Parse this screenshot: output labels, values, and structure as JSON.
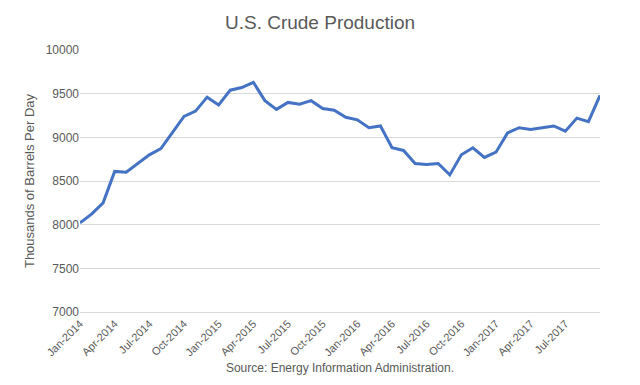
{
  "chart_data": {
    "type": "line",
    "title": "U.S. Crude Production",
    "y_label": "Thousands of Barrels Per Day",
    "x_label": "Source: Energy Information Administration.",
    "categories": [
      "Jan-2014",
      null,
      null,
      "Apr-2014",
      null,
      null,
      "Jul-2014",
      null,
      null,
      "Oct-2014",
      null,
      null,
      "Jan-2015",
      null,
      null,
      "Apr-2015",
      null,
      null,
      "Jul-2015",
      null,
      null,
      "Oct-2015",
      null,
      null,
      "Jan-2016",
      null,
      null,
      "Apr-2016",
      null,
      null,
      "Jul-2016",
      null,
      null,
      "Oct-2016",
      null,
      null,
      "Jan-2017",
      null,
      null,
      "Apr-2017",
      null,
      null,
      "Jul-2017",
      null,
      null,
      null
    ],
    "values": [
      8020,
      8120,
      8250,
      8610,
      8600,
      8700,
      8800,
      8870,
      9050,
      9240,
      9300,
      9460,
      9370,
      9540,
      9570,
      9630,
      9420,
      9320,
      9400,
      9380,
      9420,
      9330,
      9310,
      9230,
      9200,
      9110,
      9130,
      8880,
      8850,
      8700,
      8690,
      8700,
      8570,
      8800,
      8880,
      8770,
      8830,
      9050,
      9110,
      9090,
      9110,
      9130,
      9070,
      9220,
      9180,
      9480
    ],
    "color": "#4472c4",
    "ylim": [
      7000,
      10000
    ],
    "yticks": [
      7000,
      7500,
      8000,
      8500,
      9000,
      9500,
      10000
    ],
    "grid": true
  }
}
